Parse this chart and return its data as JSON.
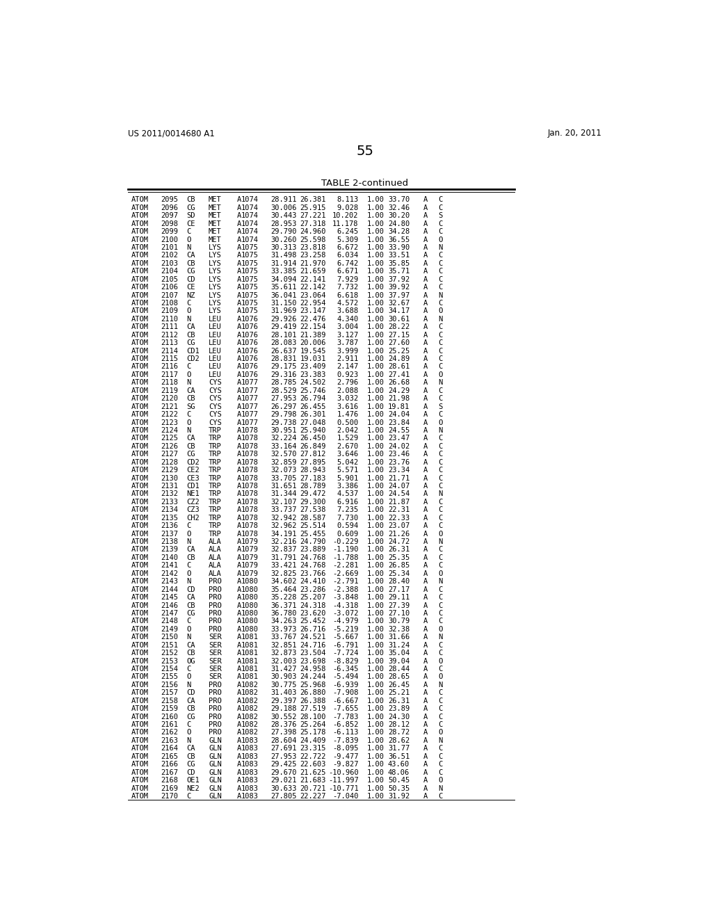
{
  "header_left": "US 2011/0014680 A1",
  "header_right": "Jan. 20, 2011",
  "page_number": "55",
  "table_title": "TABLE 2-continued",
  "background_color": "#ffffff",
  "text_color": "#000000",
  "rows": [
    [
      "ATOM",
      "2095",
      "CB",
      "MET",
      "A",
      "1074",
      "28.911",
      "26.381",
      "8.113",
      "1.00",
      "33.70",
      "A",
      "C"
    ],
    [
      "ATOM",
      "2096",
      "CG",
      "MET",
      "A",
      "1074",
      "30.006",
      "25.915",
      "9.028",
      "1.00",
      "32.46",
      "A",
      "C"
    ],
    [
      "ATOM",
      "2097",
      "SD",
      "MET",
      "A",
      "1074",
      "30.443",
      "27.221",
      "10.202",
      "1.00",
      "30.20",
      "A",
      "S"
    ],
    [
      "ATOM",
      "2098",
      "CE",
      "MET",
      "A",
      "1074",
      "28.953",
      "27.318",
      "11.178",
      "1.00",
      "24.80",
      "A",
      "C"
    ],
    [
      "ATOM",
      "2099",
      "C",
      "MET",
      "A",
      "1074",
      "29.790",
      "24.960",
      "6.245",
      "1.00",
      "34.28",
      "A",
      "C"
    ],
    [
      "ATOM",
      "2100",
      "O",
      "MET",
      "A",
      "1074",
      "30.260",
      "25.598",
      "5.309",
      "1.00",
      "36.55",
      "A",
      "O"
    ],
    [
      "ATOM",
      "2101",
      "N",
      "LYS",
      "A",
      "1075",
      "30.313",
      "23.818",
      "6.672",
      "1.00",
      "33.90",
      "A",
      "N"
    ],
    [
      "ATOM",
      "2102",
      "CA",
      "LYS",
      "A",
      "1075",
      "31.498",
      "23.258",
      "6.034",
      "1.00",
      "33.51",
      "A",
      "C"
    ],
    [
      "ATOM",
      "2103",
      "CB",
      "LYS",
      "A",
      "1075",
      "31.914",
      "21.970",
      "6.742",
      "1.00",
      "35.85",
      "A",
      "C"
    ],
    [
      "ATOM",
      "2104",
      "CG",
      "LYS",
      "A",
      "1075",
      "33.385",
      "21.659",
      "6.671",
      "1.00",
      "35.71",
      "A",
      "C"
    ],
    [
      "ATOM",
      "2105",
      "CD",
      "LYS",
      "A",
      "1075",
      "34.094",
      "22.141",
      "7.929",
      "1.00",
      "37.92",
      "A",
      "C"
    ],
    [
      "ATOM",
      "2106",
      "CE",
      "LYS",
      "A",
      "1075",
      "35.611",
      "22.142",
      "7.732",
      "1.00",
      "39.92",
      "A",
      "C"
    ],
    [
      "ATOM",
      "2107",
      "NZ",
      "LYS",
      "A",
      "1075",
      "36.041",
      "23.064",
      "6.618",
      "1.00",
      "37.97",
      "A",
      "N"
    ],
    [
      "ATOM",
      "2108",
      "C",
      "LYS",
      "A",
      "1075",
      "31.150",
      "22.954",
      "4.572",
      "1.00",
      "32.67",
      "A",
      "C"
    ],
    [
      "ATOM",
      "2109",
      "O",
      "LYS",
      "A",
      "1075",
      "31.969",
      "23.147",
      "3.688",
      "1.00",
      "34.17",
      "A",
      "O"
    ],
    [
      "ATOM",
      "2110",
      "N",
      "LEU",
      "A",
      "1076",
      "29.926",
      "22.476",
      "4.340",
      "1.00",
      "30.61",
      "A",
      "N"
    ],
    [
      "ATOM",
      "2111",
      "CA",
      "LEU",
      "A",
      "1076",
      "29.419",
      "22.154",
      "3.004",
      "1.00",
      "28.22",
      "A",
      "C"
    ],
    [
      "ATOM",
      "2112",
      "CB",
      "LEU",
      "A",
      "1076",
      "28.101",
      "21.389",
      "3.127",
      "1.00",
      "27.15",
      "A",
      "C"
    ],
    [
      "ATOM",
      "2113",
      "CG",
      "LEU",
      "A",
      "1076",
      "28.083",
      "20.006",
      "3.787",
      "1.00",
      "27.60",
      "A",
      "C"
    ],
    [
      "ATOM",
      "2114",
      "CD1",
      "LEU",
      "A",
      "1076",
      "26.637",
      "19.545",
      "3.999",
      "1.00",
      "25.25",
      "A",
      "C"
    ],
    [
      "ATOM",
      "2115",
      "CD2",
      "LEU",
      "A",
      "1076",
      "28.831",
      "19.031",
      "2.911",
      "1.00",
      "24.89",
      "A",
      "C"
    ],
    [
      "ATOM",
      "2116",
      "C",
      "LEU",
      "A",
      "1076",
      "29.175",
      "23.409",
      "2.147",
      "1.00",
      "28.61",
      "A",
      "C"
    ],
    [
      "ATOM",
      "2117",
      "O",
      "LEU",
      "A",
      "1076",
      "29.316",
      "23.383",
      "0.923",
      "1.00",
      "27.41",
      "A",
      "O"
    ],
    [
      "ATOM",
      "2118",
      "N",
      "CYS",
      "A",
      "1077",
      "28.785",
      "24.502",
      "2.796",
      "1.00",
      "26.68",
      "A",
      "N"
    ],
    [
      "ATOM",
      "2119",
      "CA",
      "CYS",
      "A",
      "1077",
      "28.529",
      "25.746",
      "2.088",
      "1.00",
      "24.29",
      "A",
      "C"
    ],
    [
      "ATOM",
      "2120",
      "CB",
      "CYS",
      "A",
      "1077",
      "27.953",
      "26.794",
      "3.032",
      "1.00",
      "21.98",
      "A",
      "C"
    ],
    [
      "ATOM",
      "2121",
      "SG",
      "CYS",
      "A",
      "1077",
      "26.297",
      "26.455",
      "3.616",
      "1.00",
      "19.81",
      "A",
      "S"
    ],
    [
      "ATOM",
      "2122",
      "C",
      "CYS",
      "A",
      "1077",
      "29.798",
      "26.301",
      "1.476",
      "1.00",
      "24.04",
      "A",
      "C"
    ],
    [
      "ATOM",
      "2123",
      "O",
      "CYS",
      "A",
      "1077",
      "29.738",
      "27.048",
      "0.500",
      "1.00",
      "23.84",
      "A",
      "O"
    ],
    [
      "ATOM",
      "2124",
      "N",
      "TRP",
      "A",
      "1078",
      "30.951",
      "25.940",
      "2.042",
      "1.00",
      "24.55",
      "A",
      "N"
    ],
    [
      "ATOM",
      "2125",
      "CA",
      "TRP",
      "A",
      "1078",
      "32.224",
      "26.450",
      "1.529",
      "1.00",
      "23.47",
      "A",
      "C"
    ],
    [
      "ATOM",
      "2126",
      "CB",
      "TRP",
      "A",
      "1078",
      "33.164",
      "26.849",
      "2.670",
      "1.00",
      "24.02",
      "A",
      "C"
    ],
    [
      "ATOM",
      "2127",
      "CG",
      "TRP",
      "A",
      "1078",
      "32.570",
      "27.812",
      "3.646",
      "1.00",
      "23.46",
      "A",
      "C"
    ],
    [
      "ATOM",
      "2128",
      "CD2",
      "TRP",
      "A",
      "1078",
      "32.859",
      "27.895",
      "5.042",
      "1.00",
      "23.76",
      "A",
      "C"
    ],
    [
      "ATOM",
      "2129",
      "CE2",
      "TRP",
      "A",
      "1078",
      "32.073",
      "28.943",
      "5.571",
      "1.00",
      "23.34",
      "A",
      "C"
    ],
    [
      "ATOM",
      "2130",
      "CE3",
      "TRP",
      "A",
      "1078",
      "33.705",
      "27.183",
      "5.901",
      "1.00",
      "21.71",
      "A",
      "C"
    ],
    [
      "ATOM",
      "2131",
      "CD1",
      "TRP",
      "A",
      "1078",
      "31.651",
      "28.789",
      "3.386",
      "1.00",
      "24.07",
      "A",
      "C"
    ],
    [
      "ATOM",
      "2132",
      "NE1",
      "TRP",
      "A",
      "1078",
      "31.344",
      "29.472",
      "4.537",
      "1.00",
      "24.54",
      "A",
      "N"
    ],
    [
      "ATOM",
      "2133",
      "CZ2",
      "TRP",
      "A",
      "1078",
      "32.107",
      "29.300",
      "6.916",
      "1.00",
      "21.87",
      "A",
      "C"
    ],
    [
      "ATOM",
      "2134",
      "CZ3",
      "TRP",
      "A",
      "1078",
      "33.737",
      "27.538",
      "7.235",
      "1.00",
      "22.31",
      "A",
      "C"
    ],
    [
      "ATOM",
      "2135",
      "CH2",
      "TRP",
      "A",
      "1078",
      "32.942",
      "28.587",
      "7.730",
      "1.00",
      "22.33",
      "A",
      "C"
    ],
    [
      "ATOM",
      "2136",
      "C",
      "TRP",
      "A",
      "1078",
      "32.962",
      "25.514",
      "0.594",
      "1.00",
      "23.07",
      "A",
      "C"
    ],
    [
      "ATOM",
      "2137",
      "O",
      "TRP",
      "A",
      "1078",
      "34.191",
      "25.455",
      "0.609",
      "1.00",
      "21.26",
      "A",
      "O"
    ],
    [
      "ATOM",
      "2138",
      "N",
      "ALA",
      "A",
      "1079",
      "32.216",
      "24.790",
      "-0.229",
      "1.00",
      "24.72",
      "A",
      "N"
    ],
    [
      "ATOM",
      "2139",
      "CA",
      "ALA",
      "A",
      "1079",
      "32.837",
      "23.889",
      "-1.190",
      "1.00",
      "26.31",
      "A",
      "C"
    ],
    [
      "ATOM",
      "2140",
      "CB",
      "ALA",
      "A",
      "1079",
      "31.791",
      "24.768",
      "-1.788",
      "1.00",
      "25.35",
      "A",
      "C"
    ],
    [
      "ATOM",
      "2141",
      "C",
      "ALA",
      "A",
      "1079",
      "33.421",
      "24.768",
      "-2.281",
      "1.00",
      "26.85",
      "A",
      "C"
    ],
    [
      "ATOM",
      "2142",
      "O",
      "ALA",
      "A",
      "1079",
      "32.825",
      "23.766",
      "-2.669",
      "1.00",
      "25.34",
      "A",
      "O"
    ],
    [
      "ATOM",
      "2143",
      "N",
      "PRO",
      "A",
      "1080",
      "34.602",
      "24.410",
      "-2.791",
      "1.00",
      "28.40",
      "A",
      "N"
    ],
    [
      "ATOM",
      "2144",
      "CD",
      "PRO",
      "A",
      "1080",
      "35.464",
      "23.286",
      "-2.388",
      "1.00",
      "27.17",
      "A",
      "C"
    ],
    [
      "ATOM",
      "2145",
      "CA",
      "PRO",
      "A",
      "1080",
      "35.228",
      "25.207",
      "-3.848",
      "1.00",
      "29.11",
      "A",
      "C"
    ],
    [
      "ATOM",
      "2146",
      "CB",
      "PRO",
      "A",
      "1080",
      "36.371",
      "24.318",
      "-4.318",
      "1.00",
      "27.39",
      "A",
      "C"
    ],
    [
      "ATOM",
      "2147",
      "CG",
      "PRO",
      "A",
      "1080",
      "36.780",
      "23.620",
      "-3.072",
      "1.00",
      "27.10",
      "A",
      "C"
    ],
    [
      "ATOM",
      "2148",
      "C",
      "PRO",
      "A",
      "1080",
      "34.263",
      "25.452",
      "-4.979",
      "1.00",
      "30.79",
      "A",
      "C"
    ],
    [
      "ATOM",
      "2149",
      "O",
      "PRO",
      "A",
      "1080",
      "33.973",
      "26.716",
      "-5.219",
      "1.00",
      "32.38",
      "A",
      "O"
    ],
    [
      "ATOM",
      "2150",
      "N",
      "SER",
      "A",
      "1081",
      "33.767",
      "24.521",
      "-5.667",
      "1.00",
      "31.66",
      "A",
      "N"
    ],
    [
      "ATOM",
      "2151",
      "CA",
      "SER",
      "A",
      "1081",
      "32.851",
      "24.716",
      "-6.791",
      "1.00",
      "31.24",
      "A",
      "C"
    ],
    [
      "ATOM",
      "2152",
      "CB",
      "SER",
      "A",
      "1081",
      "32.873",
      "23.504",
      "-7.724",
      "1.00",
      "35.04",
      "A",
      "C"
    ],
    [
      "ATOM",
      "2153",
      "OG",
      "SER",
      "A",
      "1081",
      "32.003",
      "23.698",
      "-8.829",
      "1.00",
      "39.04",
      "A",
      "O"
    ],
    [
      "ATOM",
      "2154",
      "C",
      "SER",
      "A",
      "1081",
      "31.427",
      "24.958",
      "-6.345",
      "1.00",
      "28.44",
      "A",
      "C"
    ],
    [
      "ATOM",
      "2155",
      "O",
      "SER",
      "A",
      "1081",
      "30.903",
      "24.244",
      "-5.494",
      "1.00",
      "28.65",
      "A",
      "O"
    ],
    [
      "ATOM",
      "2156",
      "N",
      "PRO",
      "A",
      "1082",
      "30.775",
      "25.968",
      "-6.939",
      "1.00",
      "26.45",
      "A",
      "N"
    ],
    [
      "ATOM",
      "2157",
      "CD",
      "PRO",
      "A",
      "1082",
      "31.403",
      "26.880",
      "-7.908",
      "1.00",
      "25.21",
      "A",
      "C"
    ],
    [
      "ATOM",
      "2158",
      "CA",
      "PRO",
      "A",
      "1082",
      "29.397",
      "26.388",
      "-6.667",
      "1.00",
      "26.31",
      "A",
      "C"
    ],
    [
      "ATOM",
      "2159",
      "CB",
      "PRO",
      "A",
      "1082",
      "29.188",
      "27.519",
      "-7.655",
      "1.00",
      "23.89",
      "A",
      "C"
    ],
    [
      "ATOM",
      "2160",
      "CG",
      "PRO",
      "A",
      "1082",
      "30.552",
      "28.100",
      "-7.783",
      "1.00",
      "24.30",
      "A",
      "C"
    ],
    [
      "ATOM",
      "2161",
      "C",
      "PRO",
      "A",
      "1082",
      "28.376",
      "25.264",
      "-6.852",
      "1.00",
      "28.12",
      "A",
      "C"
    ],
    [
      "ATOM",
      "2162",
      "O",
      "PRO",
      "A",
      "1082",
      "27.398",
      "25.178",
      "-6.113",
      "1.00",
      "28.72",
      "A",
      "O"
    ],
    [
      "ATOM",
      "2163",
      "N",
      "GLN",
      "A",
      "1083",
      "28.604",
      "24.409",
      "-7.839",
      "1.00",
      "28.62",
      "A",
      "N"
    ],
    [
      "ATOM",
      "2164",
      "CA",
      "GLN",
      "A",
      "1083",
      "27.691",
      "23.315",
      "-8.095",
      "1.00",
      "31.77",
      "A",
      "C"
    ],
    [
      "ATOM",
      "2165",
      "CB",
      "GLN",
      "A",
      "1083",
      "27.953",
      "22.722",
      "-9.477",
      "1.00",
      "36.51",
      "A",
      "C"
    ],
    [
      "ATOM",
      "2166",
      "CG",
      "GLN",
      "A",
      "1083",
      "29.425",
      "22.603",
      "-9.827",
      "1.00",
      "43.60",
      "A",
      "C"
    ],
    [
      "ATOM",
      "2167",
      "CD",
      "GLN",
      "A",
      "1083",
      "29.670",
      "21.625",
      "-10.960",
      "1.00",
      "48.06",
      "A",
      "C"
    ],
    [
      "ATOM",
      "2168",
      "OE1",
      "GLN",
      "A",
      "1083",
      "29.021",
      "21.683",
      "-11.997",
      "1.00",
      "50.45",
      "A",
      "O"
    ],
    [
      "ATOM",
      "2169",
      "NE2",
      "GLN",
      "A",
      "1083",
      "30.633",
      "20.721",
      "-10.771",
      "1.00",
      "50.35",
      "A",
      "N"
    ],
    [
      "ATOM",
      "2170",
      "C",
      "GLN",
      "A",
      "1083",
      "27.805",
      "22.227",
      "-7.040",
      "1.00",
      "31.92",
      "A",
      "C"
    ]
  ]
}
